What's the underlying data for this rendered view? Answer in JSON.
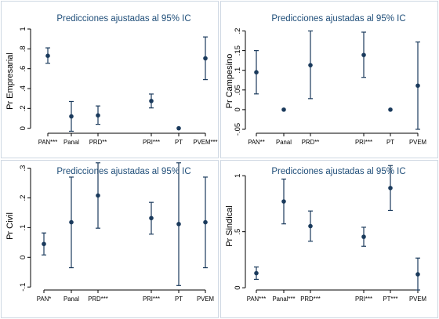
{
  "chart_data": [
    {
      "type": "scatter",
      "title": "Predicciones ajustadas al 95% IC",
      "ylabel": "Pr Empresarial",
      "xlabel": "",
      "ylim": [
        -0.05,
        1.0
      ],
      "yticks": [
        0,
        0.2,
        0.4,
        0.6,
        0.8,
        1
      ],
      "ytick_labels": [
        "0",
        ".2",
        ".4",
        ".6",
        ".8",
        "1"
      ],
      "categories": [
        "PAN***",
        "Panal",
        "PRD**",
        "PRI***",
        "PT",
        "PVEM***"
      ],
      "estimates": [
        0.73,
        0.12,
        0.13,
        0.275,
        0.0,
        0.705
      ],
      "ci_low": [
        0.655,
        -0.03,
        0.04,
        0.205,
        null,
        0.49
      ],
      "ci_high": [
        0.81,
        0.27,
        0.225,
        0.345,
        null,
        0.92
      ],
      "grid": false
    },
    {
      "type": "scatter",
      "title": "Predicciones ajustadas al 95% IC",
      "ylabel": "Pr Campesino",
      "xlabel": "",
      "ylim": [
        -0.06,
        0.205
      ],
      "yticks": [
        -0.05,
        0,
        0.05,
        0.1,
        0.15,
        0.2
      ],
      "ytick_labels": [
        "-.05",
        "0",
        ".05",
        ".1",
        ".15",
        ".2"
      ],
      "categories": [
        "PAN**",
        "Panal",
        "PRD**",
        "PRI***",
        "PT",
        "PVEM"
      ],
      "estimates": [
        0.095,
        0.0,
        0.113,
        0.139,
        0.0,
        0.061
      ],
      "ci_low": [
        0.04,
        null,
        0.028,
        0.082,
        null,
        -0.05
      ],
      "ci_high": [
        0.15,
        null,
        0.2,
        0.197,
        null,
        0.172
      ],
      "grid": false
    },
    {
      "type": "scatter",
      "title": "Predicciones ajustadas al 95% IC",
      "ylabel": "Pr Civil",
      "xlabel": "",
      "ylim": [
        -0.11,
        0.32
      ],
      "yticks": [
        -0.1,
        0,
        0.1,
        0.2,
        0.3
      ],
      "ytick_labels": [
        "-.1",
        "0",
        ".1",
        ".2",
        ".3"
      ],
      "categories": [
        "PAN*",
        "Panal",
        "PRD***",
        "PRI***",
        "PT",
        "PVEM"
      ],
      "estimates": [
        0.045,
        0.118,
        0.208,
        0.132,
        0.112,
        0.118
      ],
      "ci_low": [
        0.008,
        -0.035,
        0.098,
        0.078,
        -0.095,
        -0.035
      ],
      "ci_high": [
        0.082,
        0.27,
        0.318,
        0.185,
        0.318,
        0.27
      ],
      "grid": false
    },
    {
      "type": "scatter",
      "title": "Predicciones ajustadas al 95% IC",
      "ylabel": "Pr Sindical",
      "xlabel": "",
      "ylim": [
        -0.02,
        1.12
      ],
      "yticks": [
        0,
        0.5,
        1
      ],
      "ytick_labels": [
        "0",
        ".5",
        "1"
      ],
      "categories": [
        "PAN***",
        "Panal***",
        "PRD***",
        "PRI***",
        "PT***",
        "PVEM"
      ],
      "estimates": [
        0.13,
        0.77,
        0.55,
        0.455,
        0.89,
        0.12
      ],
      "ci_low": [
        0.075,
        0.57,
        0.415,
        0.37,
        0.69,
        -0.02
      ],
      "ci_high": [
        0.185,
        0.97,
        0.685,
        0.54,
        1.09,
        0.265
      ],
      "grid": false
    }
  ],
  "colors": {
    "marker": "#1a3a5c",
    "axis": "#000000",
    "title": "#1f4e79",
    "panel_border": "#cfd8e3"
  }
}
